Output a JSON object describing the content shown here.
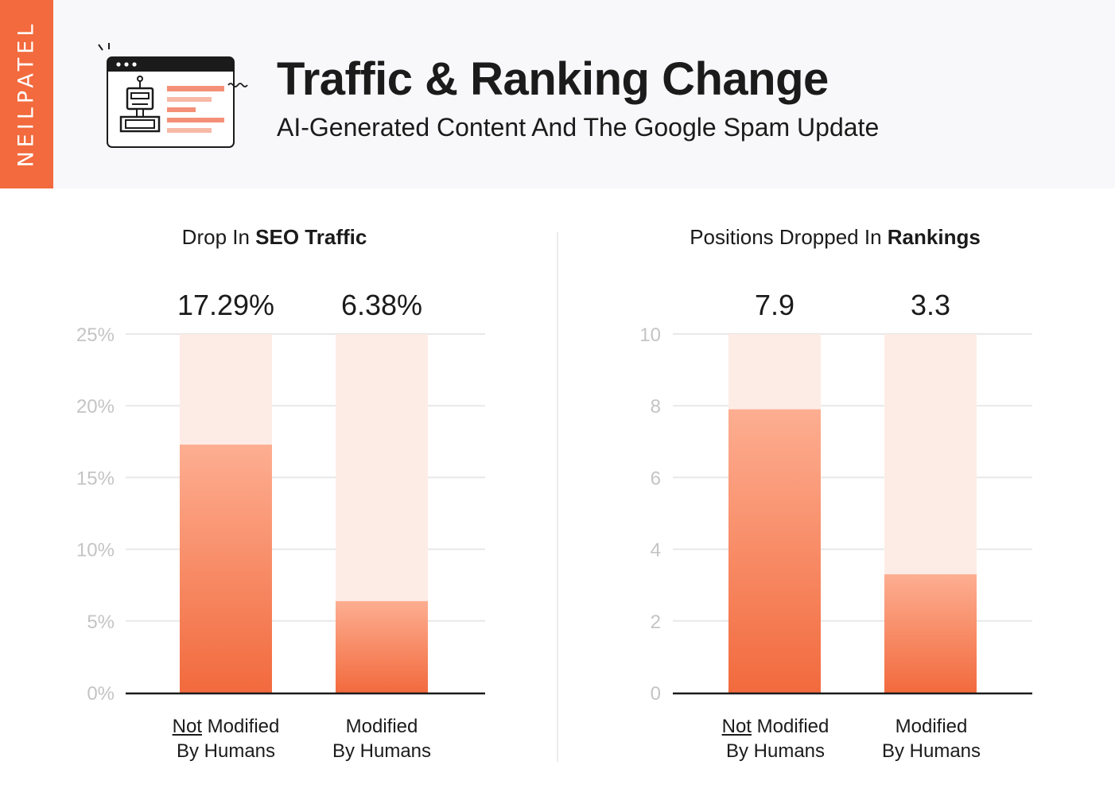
{
  "brand": "NEILPATEL",
  "header": {
    "title": "Traffic & Ranking Change",
    "subtitle": "AI-Generated Content And The Google Spam Update",
    "icon": "robot-content-window-icon",
    "accent_color": "#f26a3d"
  },
  "chart_data": [
    {
      "type": "bar",
      "title_prefix": "Drop In ",
      "title_bold": "SEO Traffic",
      "categories": [
        "Not Modified By Humans",
        "Modified By Humans"
      ],
      "category_lines": [
        {
          "underlined": "Not",
          "rest": " Modified",
          "line2": "By Humans"
        },
        {
          "underlined": "",
          "rest": "Modified",
          "line2": "By Humans"
        }
      ],
      "values": [
        17.29,
        6.38
      ],
      "value_labels": [
        "17.29%",
        "6.38%"
      ],
      "ylim": [
        0,
        25
      ],
      "yticks": [
        0,
        5,
        10,
        15,
        20,
        25
      ],
      "ytick_labels": [
        "0%",
        "5%",
        "10%",
        "15%",
        "20%",
        "25%"
      ],
      "grid": true,
      "bar_color": "#f26a3d",
      "track_color": "#fdece6"
    },
    {
      "type": "bar",
      "title_prefix": "Positions Dropped In ",
      "title_bold": "Rankings",
      "categories": [
        "Not Modified By Humans",
        "Modified By Humans"
      ],
      "category_lines": [
        {
          "underlined": "Not",
          "rest": " Modified",
          "line2": "By Humans"
        },
        {
          "underlined": "",
          "rest": "Modified",
          "line2": "By Humans"
        }
      ],
      "values": [
        7.9,
        3.3
      ],
      "value_labels": [
        "7.9",
        "3.3"
      ],
      "ylim": [
        0,
        10
      ],
      "yticks": [
        0,
        2,
        4,
        6,
        8,
        10
      ],
      "ytick_labels": [
        "0",
        "2",
        "4",
        "6",
        "8",
        "10"
      ],
      "grid": true,
      "bar_color": "#f26a3d",
      "track_color": "#fdece6"
    }
  ]
}
